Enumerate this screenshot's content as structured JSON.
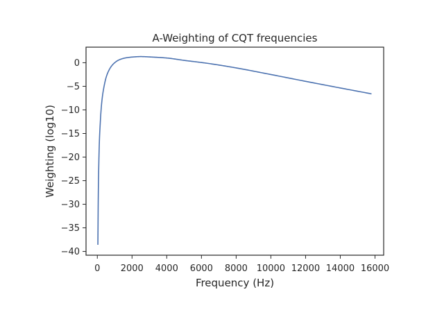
{
  "chart_data": {
    "type": "line",
    "title": "A-Weighting of CQT frequencies",
    "xlabel": "Frequency (Hz)",
    "ylabel": "Weighting (log10)",
    "xlim": [
      -650,
      16500
    ],
    "ylim": [
      -40.8,
      3.3
    ],
    "xticks": [
      0,
      2000,
      4000,
      6000,
      8000,
      10000,
      12000,
      14000,
      16000
    ],
    "xtick_labels": [
      "0",
      "2000",
      "4000",
      "6000",
      "8000",
      "10000",
      "12000",
      "14000",
      "16000"
    ],
    "yticks": [
      0,
      -5,
      -10,
      -15,
      -20,
      -25,
      -30,
      -35,
      -40
    ],
    "ytick_labels": [
      "0",
      "−5",
      "−10",
      "−15",
      "−20",
      "−25",
      "−30",
      "−35",
      "−40"
    ],
    "grid": false,
    "line_color": "#4c72b0",
    "x": [
      32.7,
      40,
      50,
      65,
      80,
      100,
      130,
      160,
      200,
      250,
      315,
      400,
      500,
      630,
      800,
      1000,
      1250,
      1600,
      2000,
      2500,
      3150,
      4000,
      5000,
      6300,
      8000,
      10000,
      12500,
      15800
    ],
    "values": [
      -38.6,
      -35.2,
      -30.2,
      -25.5,
      -22.5,
      -19.1,
      -15.6,
      -13.4,
      -10.9,
      -8.6,
      -6.6,
      -4.8,
      -3.2,
      -1.9,
      -0.8,
      0.0,
      0.6,
      1.0,
      1.2,
      1.3,
      1.2,
      1.0,
      0.5,
      -0.1,
      -1.1,
      -2.5,
      -4.3,
      -6.6
    ]
  }
}
